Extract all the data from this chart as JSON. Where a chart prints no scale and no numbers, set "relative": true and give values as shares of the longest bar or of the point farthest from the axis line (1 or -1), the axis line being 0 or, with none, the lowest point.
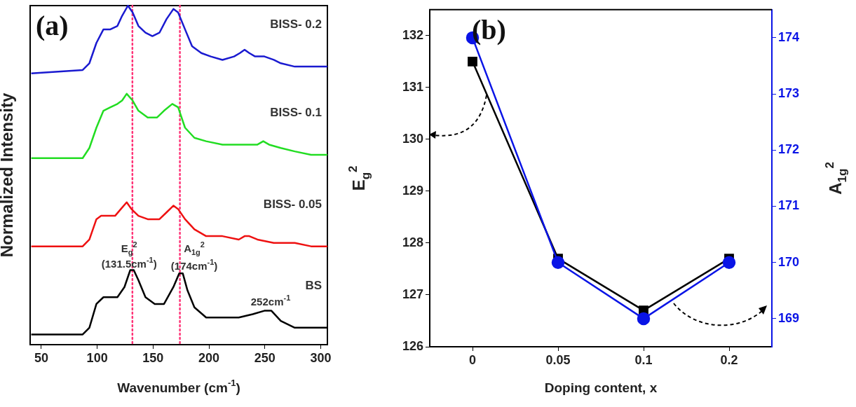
{
  "chart_data": [
    {
      "type": "line",
      "xlabel": "Wavenumber (cm$^{-1}$)",
      "ylabel": "Normalized Intensity",
      "relative": true,
      "xlim": [
        40,
        306
      ],
      "xticks": [
        50,
        100,
        150,
        200,
        250,
        300
      ],
      "tick_labels": "x",
      "marker": "none",
      "grid": false,
      "legend": false,
      "ref_lines": [
        {
          "axis": "x",
          "value": 131.5,
          "color": "#ff3377",
          "line_style": "dotted"
        },
        {
          "axis": "x",
          "value": 174,
          "color": "#ff3377",
          "line_style": "dotted"
        }
      ],
      "annotations": [
        "(a)",
        "E$_{g}$$^{2}$",
        "(131.5cm$^{-1}$)",
        "A$_{1g}$$^{2}$",
        "(174cm$^{-1}$)",
        "252cm$^{-1}$"
      ],
      "series": [
        {
          "name": "BISS- 0.2",
          "color": "#1a1ad0",
          "x": [
            41,
            87,
            93,
            99.3,
            105.6,
            111.8,
            118.1,
            122.3,
            127.5,
            131.7,
            136.9,
            143.2,
            149.4,
            155.7,
            162,
            168.2,
            172.4,
            178.6,
            184.9,
            193.2,
            201.6,
            212.1,
            222.5,
            227.7,
            231.9,
            236.1,
            241.3,
            249.6,
            258,
            264.3,
            276.8,
            291.4,
            306
          ],
          "values": [
            0.8,
            0.81,
            0.83,
            0.89,
            0.93,
            0.93,
            0.94,
            0.97,
            1.0,
            0.98,
            0.94,
            0.92,
            0.91,
            0.92,
            0.96,
            0.99,
            0.98,
            0.93,
            0.88,
            0.86,
            0.85,
            0.84,
            0.85,
            0.86,
            0.87,
            0.86,
            0.85,
            0.85,
            0.84,
            0.83,
            0.82,
            0.82,
            0.82
          ]
        },
        {
          "name": "BISS- 0.1",
          "color": "#22dd22",
          "x": [
            41,
            87,
            93,
            99.3,
            105.6,
            111.8,
            118.1,
            122.3,
            126.4,
            131.7,
            136.9,
            145.2,
            153.6,
            159.8,
            167.2,
            172.4,
            178.6,
            187,
            197.5,
            212.1,
            232.9,
            243.4,
            248.6,
            253.8,
            264.3,
            276.8,
            291.4,
            306
          ],
          "values": [
            0.55,
            0.55,
            0.58,
            0.64,
            0.69,
            0.7,
            0.71,
            0.72,
            0.74,
            0.72,
            0.69,
            0.67,
            0.67,
            0.69,
            0.71,
            0.7,
            0.64,
            0.61,
            0.6,
            0.59,
            0.59,
            0.59,
            0.6,
            0.59,
            0.58,
            0.57,
            0.56,
            0.56
          ]
        },
        {
          "name": "BISS- 0.05",
          "color": "#ee1111",
          "x": [
            41,
            87,
            93,
            99.3,
            103.5,
            109.7,
            116,
            121.2,
            126.4,
            130.6,
            136.9,
            145.2,
            155.7,
            162,
            168.2,
            172.4,
            178.6,
            187,
            197.5,
            212.1,
            226.7,
            231.9,
            236.1,
            243.4,
            258,
            276.8,
            291.4,
            306
          ],
          "values": [
            0.29,
            0.29,
            0.31,
            0.37,
            0.38,
            0.38,
            0.38,
            0.4,
            0.42,
            0.4,
            0.38,
            0.37,
            0.37,
            0.39,
            0.41,
            0.4,
            0.37,
            0.34,
            0.32,
            0.32,
            0.31,
            0.32,
            0.32,
            0.31,
            0.3,
            0.3,
            0.29,
            0.29
          ]
        },
        {
          "name": "BS",
          "color": "#000000",
          "x": [
            41,
            87,
            93,
            99.3,
            105.6,
            111.8,
            118.1,
            124.4,
            129.6,
            132.7,
            136.9,
            143.2,
            151.5,
            159.8,
            168.2,
            173.4,
            176.6,
            180.8,
            187,
            197.5,
            212.1,
            226.7,
            239.2,
            249.6,
            255.9,
            264.3,
            276.8,
            291.4,
            306
          ],
          "values": [
            0.03,
            0.03,
            0.05,
            0.12,
            0.14,
            0.14,
            0.14,
            0.17,
            0.22,
            0.22,
            0.19,
            0.14,
            0.12,
            0.12,
            0.17,
            0.21,
            0.21,
            0.16,
            0.11,
            0.08,
            0.08,
            0.08,
            0.09,
            0.1,
            0.1,
            0.07,
            0.05,
            0.05,
            0.05
          ]
        }
      ]
    },
    {
      "type": "line",
      "xlabel": "Doping content, x",
      "ylabel": "E$_{g}$$^{2}$",
      "y2label": "A$_{1g}$$^{2}$",
      "categories": [
        "0",
        "0.05",
        "0.1",
        "0.2"
      ],
      "grid": false,
      "legend": false,
      "ylim": [
        126,
        132.5
      ],
      "yticks": [
        126,
        127,
        128,
        129,
        130,
        131,
        132
      ],
      "y2lim": [
        168.5,
        174.5
      ],
      "y2ticks": [
        169,
        170,
        171,
        172,
        173,
        174
      ],
      "annotations": [
        "(b)"
      ],
      "series": [
        {
          "color": "#000000",
          "marker": "square",
          "values": [
            131.5,
            127.7,
            126.7,
            127.7
          ]
        },
        {
          "color": "#0a14e6",
          "marker": "circle",
          "axis": "y2",
          "values": [
            174,
            170,
            169,
            170
          ]
        }
      ]
    }
  ]
}
